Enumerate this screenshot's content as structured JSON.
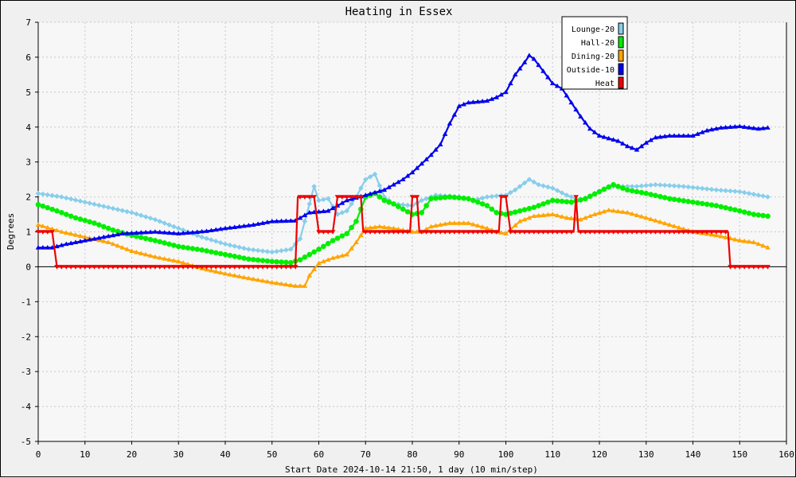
{
  "chart_data": {
    "type": "line",
    "title": "Heating in Essex",
    "xlabel": "Start Date 2024-10-14 21:50, 1 day (10 min/step)",
    "ylabel": "Degrees",
    "xlim": [
      0,
      160
    ],
    "ylim": [
      -5,
      7
    ],
    "x_ticks": [
      0,
      10,
      20,
      30,
      40,
      50,
      60,
      70,
      80,
      90,
      100,
      110,
      120,
      130,
      140,
      150,
      160
    ],
    "y_ticks": [
      7,
      6,
      5,
      4,
      3,
      2,
      1,
      0,
      -1,
      -2,
      -3,
      -4,
      -5
    ],
    "grid": true,
    "legend_position": "top-right",
    "series": [
      {
        "name": "Lounge-20",
        "color": "#87ceeb",
        "marker": "diamond",
        "points": [
          [
            0,
            2.1
          ],
          [
            5,
            2.0
          ],
          [
            10,
            1.85
          ],
          [
            15,
            1.7
          ],
          [
            20,
            1.55
          ],
          [
            25,
            1.35
          ],
          [
            30,
            1.1
          ],
          [
            35,
            0.85
          ],
          [
            40,
            0.65
          ],
          [
            45,
            0.5
          ],
          [
            50,
            0.42
          ],
          [
            54,
            0.5
          ],
          [
            56,
            0.8
          ],
          [
            58,
            1.8
          ],
          [
            59,
            2.3
          ],
          [
            60,
            1.9
          ],
          [
            62,
            1.95
          ],
          [
            64,
            1.5
          ],
          [
            66,
            1.6
          ],
          [
            68,
            2.0
          ],
          [
            70,
            2.5
          ],
          [
            72,
            2.65
          ],
          [
            74,
            2.0
          ],
          [
            76,
            1.8
          ],
          [
            80,
            1.75
          ],
          [
            82,
            1.9
          ],
          [
            85,
            2.05
          ],
          [
            90,
            2.0
          ],
          [
            93,
            1.9
          ],
          [
            96,
            2.0
          ],
          [
            100,
            2.05
          ],
          [
            102,
            2.2
          ],
          [
            105,
            2.5
          ],
          [
            107,
            2.35
          ],
          [
            110,
            2.25
          ],
          [
            113,
            2.05
          ],
          [
            116,
            1.9
          ],
          [
            119,
            2.1
          ],
          [
            122,
            2.3
          ],
          [
            128,
            2.3
          ],
          [
            132,
            2.35
          ],
          [
            138,
            2.3
          ],
          [
            145,
            2.2
          ],
          [
            150,
            2.15
          ],
          [
            156,
            2.0
          ]
        ]
      },
      {
        "name": "Hall-20",
        "color": "#00ee00",
        "marker": "circle",
        "points": [
          [
            0,
            1.78
          ],
          [
            4,
            1.6
          ],
          [
            8,
            1.4
          ],
          [
            12,
            1.25
          ],
          [
            16,
            1.05
          ],
          [
            20,
            0.9
          ],
          [
            25,
            0.75
          ],
          [
            30,
            0.58
          ],
          [
            35,
            0.48
          ],
          [
            40,
            0.35
          ],
          [
            45,
            0.22
          ],
          [
            50,
            0.15
          ],
          [
            54,
            0.12
          ],
          [
            56,
            0.2
          ],
          [
            60,
            0.5
          ],
          [
            63,
            0.75
          ],
          [
            66,
            0.95
          ],
          [
            68,
            1.3
          ],
          [
            70,
            2.0
          ],
          [
            72,
            2.1
          ],
          [
            74,
            1.9
          ],
          [
            76,
            1.8
          ],
          [
            78,
            1.65
          ],
          [
            80,
            1.5
          ],
          [
            82,
            1.55
          ],
          [
            84,
            1.95
          ],
          [
            88,
            2.0
          ],
          [
            92,
            1.95
          ],
          [
            96,
            1.75
          ],
          [
            98,
            1.55
          ],
          [
            100,
            1.5
          ],
          [
            103,
            1.6
          ],
          [
            106,
            1.7
          ],
          [
            110,
            1.9
          ],
          [
            114,
            1.85
          ],
          [
            117,
            1.95
          ],
          [
            120,
            2.15
          ],
          [
            123,
            2.35
          ],
          [
            126,
            2.2
          ],
          [
            130,
            2.1
          ],
          [
            135,
            1.95
          ],
          [
            140,
            1.85
          ],
          [
            145,
            1.75
          ],
          [
            150,
            1.6
          ],
          [
            153,
            1.5
          ],
          [
            156,
            1.45
          ]
        ]
      },
      {
        "name": "Dining-20",
        "color": "#ffa500",
        "marker": "triangle",
        "points": [
          [
            0,
            1.2
          ],
          [
            5,
            1.0
          ],
          [
            10,
            0.85
          ],
          [
            15,
            0.7
          ],
          [
            20,
            0.45
          ],
          [
            25,
            0.28
          ],
          [
            30,
            0.15
          ],
          [
            35,
            -0.05
          ],
          [
            40,
            -0.2
          ],
          [
            45,
            -0.33
          ],
          [
            50,
            -0.45
          ],
          [
            55,
            -0.55
          ],
          [
            57,
            -0.55
          ],
          [
            58,
            -0.25
          ],
          [
            60,
            0.1
          ],
          [
            63,
            0.25
          ],
          [
            66,
            0.35
          ],
          [
            68,
            0.7
          ],
          [
            70,
            1.1
          ],
          [
            73,
            1.15
          ],
          [
            76,
            1.1
          ],
          [
            80,
            1.0
          ],
          [
            82,
            1.0
          ],
          [
            84,
            1.15
          ],
          [
            88,
            1.25
          ],
          [
            92,
            1.25
          ],
          [
            96,
            1.1
          ],
          [
            98,
            1.0
          ],
          [
            100,
            0.95
          ],
          [
            103,
            1.3
          ],
          [
            106,
            1.45
          ],
          [
            110,
            1.5
          ],
          [
            113,
            1.4
          ],
          [
            116,
            1.35
          ],
          [
            119,
            1.5
          ],
          [
            122,
            1.62
          ],
          [
            126,
            1.55
          ],
          [
            130,
            1.4
          ],
          [
            135,
            1.2
          ],
          [
            140,
            1.0
          ],
          [
            145,
            0.9
          ],
          [
            150,
            0.75
          ],
          [
            153,
            0.7
          ],
          [
            156,
            0.55
          ]
        ]
      },
      {
        "name": "Outside-10",
        "color": "#0000ee",
        "marker": "triangle",
        "points": [
          [
            0,
            0.55
          ],
          [
            3,
            0.55
          ],
          [
            6,
            0.65
          ],
          [
            10,
            0.75
          ],
          [
            14,
            0.85
          ],
          [
            18,
            0.95
          ],
          [
            25,
            1.0
          ],
          [
            30,
            0.95
          ],
          [
            36,
            1.02
          ],
          [
            40,
            1.1
          ],
          [
            46,
            1.2
          ],
          [
            50,
            1.3
          ],
          [
            55,
            1.32
          ],
          [
            58,
            1.55
          ],
          [
            62,
            1.6
          ],
          [
            66,
            1.9
          ],
          [
            70,
            2.05
          ],
          [
            74,
            2.2
          ],
          [
            78,
            2.5
          ],
          [
            80,
            2.7
          ],
          [
            84,
            3.2
          ],
          [
            86,
            3.5
          ],
          [
            88,
            4.1
          ],
          [
            90,
            4.6
          ],
          [
            92,
            4.7
          ],
          [
            96,
            4.75
          ],
          [
            98,
            4.85
          ],
          [
            100,
            5.0
          ],
          [
            102,
            5.5
          ],
          [
            104,
            5.85
          ],
          [
            105,
            6.05
          ],
          [
            106,
            5.95
          ],
          [
            108,
            5.6
          ],
          [
            110,
            5.25
          ],
          [
            112,
            5.1
          ],
          [
            114,
            4.7
          ],
          [
            116,
            4.3
          ],
          [
            118,
            3.95
          ],
          [
            120,
            3.75
          ],
          [
            124,
            3.6
          ],
          [
            126,
            3.45
          ],
          [
            128,
            3.35
          ],
          [
            130,
            3.55
          ],
          [
            132,
            3.7
          ],
          [
            135,
            3.75
          ],
          [
            140,
            3.75
          ],
          [
            143,
            3.9
          ],
          [
            146,
            3.98
          ],
          [
            150,
            4.02
          ],
          [
            154,
            3.95
          ],
          [
            156,
            3.98
          ]
        ]
      },
      {
        "name": "Heat",
        "color": "#ee0000",
        "marker": "triangle-down",
        "points": [
          [
            0,
            1
          ],
          [
            3,
            1
          ],
          [
            4,
            0
          ],
          [
            55,
            0
          ],
          [
            55.5,
            2
          ],
          [
            59,
            2
          ],
          [
            60,
            1
          ],
          [
            63,
            1
          ],
          [
            64,
            2
          ],
          [
            69,
            2
          ],
          [
            69.5,
            1
          ],
          [
            79.5,
            1
          ],
          [
            80,
            2
          ],
          [
            81,
            2
          ],
          [
            81.5,
            1
          ],
          [
            98.5,
            1
          ],
          [
            99,
            2
          ],
          [
            100,
            2
          ],
          [
            101,
            1
          ],
          [
            114.5,
            1
          ],
          [
            115,
            2
          ],
          [
            115.5,
            1
          ],
          [
            147.5,
            1
          ],
          [
            148,
            0
          ],
          [
            156,
            0
          ]
        ]
      }
    ]
  }
}
